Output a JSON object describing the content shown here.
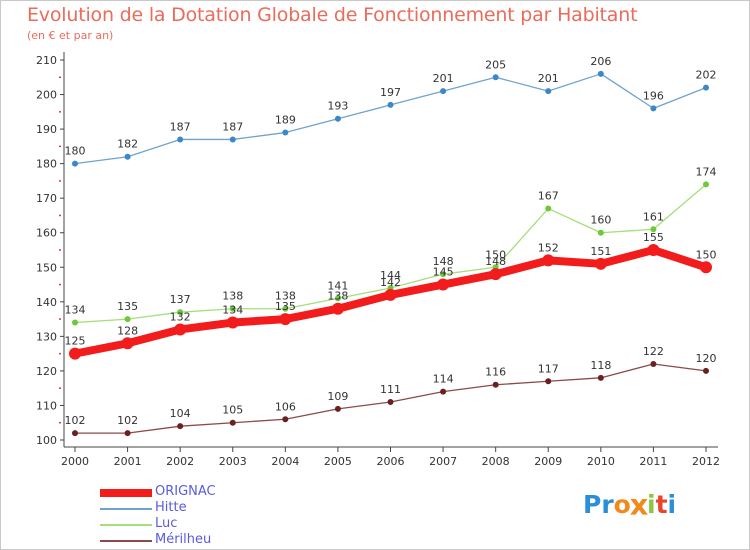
{
  "title": "Evolution de la Dotation Globale de Fonctionnement par Habitant",
  "subtitle": "(en € et par an)",
  "logo": {
    "text": "Proxiti",
    "letters": [
      "P",
      "r",
      "o",
      "x",
      "i",
      "t",
      "i"
    ],
    "colors": [
      "#2a8fd6",
      "#2a8fd6",
      "#f08a1c",
      "#f08a1c",
      "#8dc63f",
      "#e8452c",
      "#2a8fd6"
    ]
  },
  "chart_data": {
    "type": "line",
    "title": "Evolution de la Dotation Globale de Fonctionnement par Habitant",
    "subtitle": "(en € et par an)",
    "xlabel": "",
    "ylabel": "",
    "ylim": [
      100,
      210
    ],
    "yticks": [
      100,
      110,
      120,
      130,
      140,
      150,
      160,
      170,
      180,
      190,
      200,
      210
    ],
    "categories": [
      "2000",
      "2001",
      "2002",
      "2003",
      "2004",
      "2005",
      "2006",
      "2007",
      "2008",
      "2009",
      "2010",
      "2011",
      "2012"
    ],
    "grid": false,
    "legend_position": "bottom-left",
    "series": [
      {
        "name": "Hitte",
        "color": "#6fa3cf",
        "marker": "#3b88c8",
        "width": 1.3,
        "radius": 3,
        "values": [
          180,
          182,
          187,
          187,
          189,
          193,
          197,
          201,
          205,
          201,
          206,
          196,
          202
        ]
      },
      {
        "name": "Luc",
        "color": "#a6df7a",
        "marker": "#6cc93a",
        "width": 1.3,
        "radius": 3,
        "values": [
          134,
          135,
          137,
          138,
          138,
          141,
          144,
          148,
          150,
          167,
          160,
          161,
          174
        ]
      },
      {
        "name": "Mérilheu",
        "color": "#8c4a4a",
        "marker": "#6b2020",
        "width": 1.3,
        "radius": 3,
        "values": [
          102,
          102,
          104,
          105,
          106,
          109,
          111,
          114,
          116,
          117,
          118,
          122,
          120
        ]
      },
      {
        "name": "ORIGNAC",
        "color": "#f21c1c",
        "marker": "#f21c1c",
        "width": 8,
        "radius": 6,
        "values": [
          125,
          128,
          132,
          134,
          135,
          138,
          142,
          145,
          148,
          152,
          151,
          155,
          150
        ]
      }
    ]
  },
  "legend": [
    {
      "label": "ORIGNAC",
      "color": "#f21c1c",
      "thick": true
    },
    {
      "label": "Hitte",
      "color": "#6fa3cf",
      "thick": false
    },
    {
      "label": "Luc",
      "color": "#a6df7a",
      "thick": false
    },
    {
      "label": "Mérilheu",
      "color": "#8c4a4a",
      "thick": false
    }
  ]
}
